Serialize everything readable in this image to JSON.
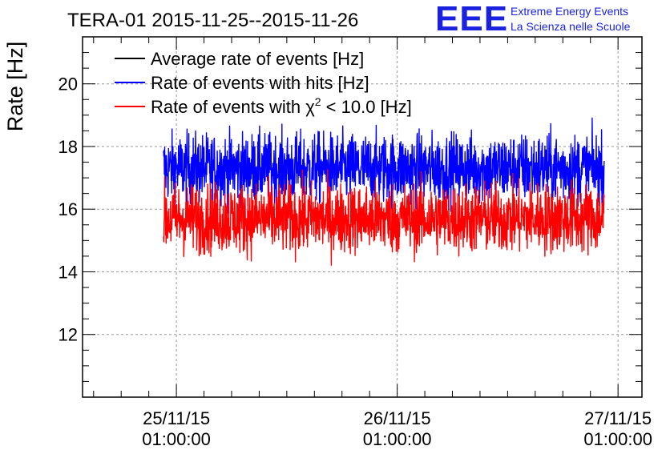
{
  "chart_data": {
    "type": "line",
    "title": "TERA-01 2015-11-25--2015-11-26",
    "ylabel": "Rate [Hz]",
    "xlabel": "",
    "ylim": [
      10,
      21.5
    ],
    "xlim_hours": [
      -10.2,
      50.6
    ],
    "yticks": [
      "12",
      "14",
      "16",
      "18",
      "20"
    ],
    "xticks": [
      {
        "hour": 0,
        "date": "25/11/15",
        "time": "01:00:00"
      },
      {
        "hour": 24,
        "date": "26/11/15",
        "time": "01:00:00"
      },
      {
        "hour": 48,
        "date": "27/11/15",
        "time": "01:00:00"
      }
    ],
    "x_data_range_hours": [
      -1.4,
      46.5
    ],
    "grid": true,
    "legend_position": "top-left",
    "series": [
      {
        "name": "Average rate of events [Hz]",
        "color": "#000000",
        "mean": 17.3,
        "spread": 0.0
      },
      {
        "name": "Rate of events with hits [Hz]",
        "color": "#0000ff",
        "mean": 17.3,
        "spread": 0.55,
        "min": 15.8,
        "max": 19.2
      },
      {
        "name": "Rate of events with χ² < 10.0 [Hz]",
        "color": "#ff0000",
        "mean": 15.7,
        "spread": 0.55,
        "min": 13.8,
        "max": 17.8
      }
    ],
    "legend": {
      "avg": "Average rate of events [Hz]",
      "hits": "Rate of events with hits [Hz]",
      "chi_pre": "Rate of events with χ",
      "chi_sup": "2",
      "chi_post": " < 10.0 [Hz]"
    }
  },
  "logo": {
    "mark": "EEE",
    "line1": "Extreme Energy Events",
    "line2": "La Scienza nelle Scuole",
    "color": "#1a22e0"
  }
}
